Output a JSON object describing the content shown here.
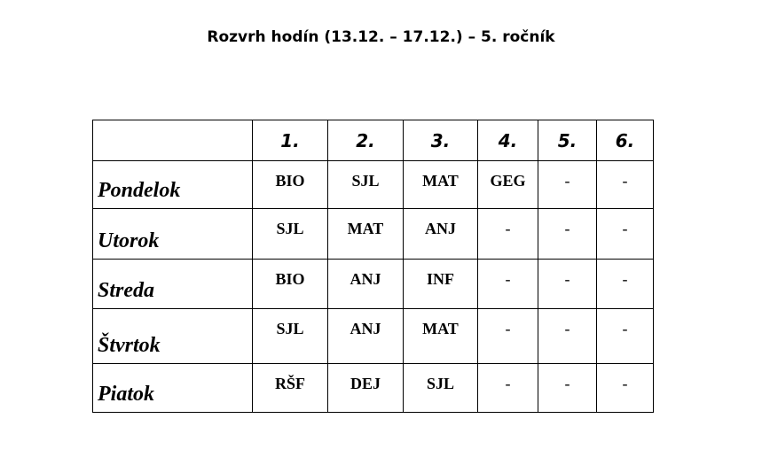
{
  "title": "Rozvrh hodín (13.12. – 17.12.) – 5. ročník",
  "columns": [
    "",
    "1.",
    "2.",
    "3.",
    "4.",
    "5.",
    "6."
  ],
  "rows": [
    {
      "day": "Pondelok",
      "lessons": [
        "BIO",
        "SJL",
        "MAT",
        "GEG",
        "-",
        "-"
      ]
    },
    {
      "day": "Utorok",
      "lessons": [
        "SJL",
        "MAT",
        "ANJ",
        "-",
        "-",
        "-"
      ]
    },
    {
      "day": "Streda",
      "lessons": [
        "BIO",
        "ANJ",
        "INF",
        "-",
        "-",
        "-"
      ]
    },
    {
      "day": "Štvrtok",
      "lessons": [
        "SJL",
        "ANJ",
        "MAT",
        "-",
        "-",
        "-"
      ]
    },
    {
      "day": "Piatok",
      "lessons": [
        "RŠF",
        "DEJ",
        "SJL",
        "-",
        "-",
        "-"
      ]
    }
  ]
}
